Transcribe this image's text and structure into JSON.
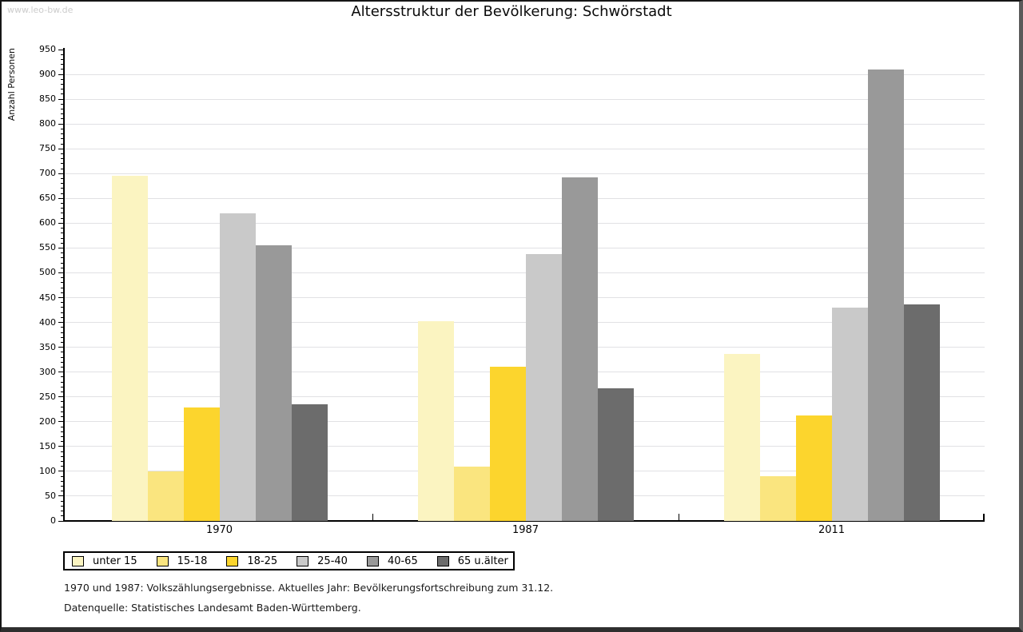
{
  "watermark": "www.leo-bw.de",
  "chart_data": {
    "type": "bar",
    "title": "Altersstruktur der Bevölkerung: Schwörstadt",
    "ylabel": "Anzahl Personen",
    "xlabel": "",
    "ylim": [
      0,
      950
    ],
    "ytick_step": 50,
    "minor_tick_step": 10,
    "grid": true,
    "legend_position": "bottom-left",
    "categories": [
      "1970",
      "1987",
      "2011"
    ],
    "series": [
      {
        "name": "unter 15",
        "color": "#FBF4C1",
        "values": [
          695,
          402,
          337
        ]
      },
      {
        "name": "15-18",
        "color": "#FAE57F",
        "values": [
          100,
          110,
          90
        ]
      },
      {
        "name": "18-25",
        "color": "#FCD52D",
        "values": [
          228,
          310,
          213
        ]
      },
      {
        "name": "25-40",
        "color": "#C9C9C9",
        "values": [
          620,
          537,
          430
        ]
      },
      {
        "name": "40-65",
        "color": "#999999",
        "values": [
          555,
          693,
          910
        ]
      },
      {
        "name": "65 u.älter",
        "color": "#6C6C6C",
        "values": [
          235,
          267,
          437
        ]
      }
    ]
  },
  "footnotes": [
    "1970 und 1987: Volkszählungsergebnisse. Aktuelles Jahr: Bevölkerungsfortschreibung zum 31.12.",
    "Datenquelle: Statistisches Landesamt Baden-Württemberg."
  ]
}
